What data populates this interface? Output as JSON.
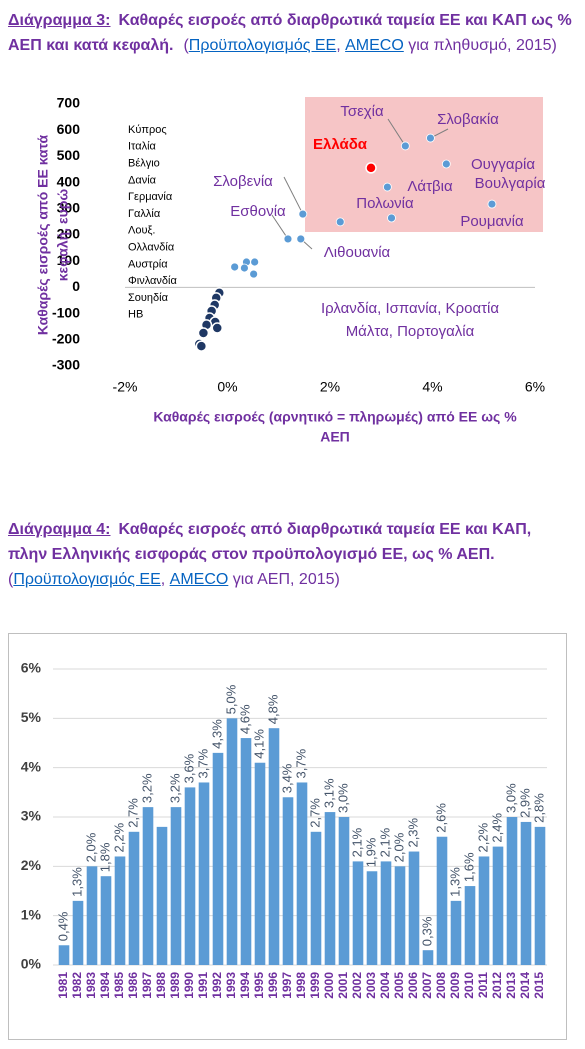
{
  "captions": [
    {
      "segments": [
        {
          "kind": "label",
          "text": "Διάγραμμα 3:"
        },
        {
          "kind": "title",
          "text": "Καθαρές εισροές από διαρθρωτικά ταμεία ΕΕ και ΚΑΠ ως % ΑΕΠ και κατά κεφαλή."
        },
        {
          "kind": "plain",
          "text": "("
        },
        {
          "kind": "link",
          "text": "Προϋπολογισμός ΕΕ"
        },
        {
          "kind": "plain",
          "text": ", "
        },
        {
          "kind": "link",
          "text": "AMECO"
        },
        {
          "kind": "plain",
          "text": " για πληθυσμό, 2015)"
        }
      ]
    },
    {
      "segments": [
        {
          "kind": "label",
          "text": "Διάγραμμα 4:"
        },
        {
          "kind": "title",
          "text": "Καθαρές εισροές από διαρθρωτικά ταμεία ΕΕ και ΚΑΠ, πλην Ελληνικής εισφοράς στον προϋπολογισμό ΕΕ, ως % ΑΕΠ."
        },
        {
          "kind": "plain",
          "text": "("
        },
        {
          "kind": "link",
          "text": "Προϋπολογισμός ΕΕ"
        },
        {
          "kind": "plain",
          "text": ", "
        },
        {
          "kind": "link",
          "text": "AMECO"
        },
        {
          "kind": "plain",
          "text": " για ΑΕΠ, 2015)"
        }
      ]
    }
  ],
  "chart_data": [
    {
      "type": "scatter",
      "x_label": [
        "Καθαρές εισροές (αρνητικό = πληρωμές) από ΕΕ ως %",
        "ΑΕΠ"
      ],
      "y_label": [
        "Καθαρές εισροές από ΕΕ κατά",
        "κεφαλή, ευρώ"
      ],
      "xlim": [
        -2,
        6
      ],
      "xticks": [
        {
          "value": -2,
          "label": "-2%"
        },
        {
          "value": 0,
          "label": "0%"
        },
        {
          "value": 2,
          "label": "2%"
        },
        {
          "value": 4,
          "label": "4%"
        },
        {
          "value": 6,
          "label": "6%"
        }
      ],
      "ylim": [
        -300,
        700
      ],
      "yticks": [
        -300,
        -200,
        -100,
        0,
        100,
        200,
        300,
        400,
        500,
        600,
        700
      ],
      "x": [
        3.47,
        3.96,
        2.8,
        4.27,
        3.12,
        5.16,
        2.2,
        3.2,
        1.47,
        1.18,
        1.43,
        0.14,
        0.37,
        0.53,
        0.33,
        0.51,
        -0.16,
        -0.22,
        -0.25,
        -0.31,
        -0.35,
        -0.24,
        -0.41,
        -0.2,
        -0.47,
        -0.55,
        -0.51
      ],
      "y": [
        540,
        570,
        456,
        471,
        383,
        318,
        250,
        265,
        280,
        185,
        185,
        78,
        97,
        97,
        74,
        51,
        -21,
        -40,
        -67,
        -90,
        -117,
        -132,
        -143,
        -155,
        -174,
        -216,
        -224
      ],
      "labels": [
        "Τσεχία",
        "Σλοβακία",
        "Ελλάδα",
        "Ουγγαρία",
        "Λάτβια",
        "Βουλγαρία",
        "Πολωνία",
        "Ρουμανία",
        "Σλοβενία",
        "Εσθονία",
        "Λιθουανία",
        null,
        null,
        null,
        null,
        null,
        null,
        null,
        null,
        null,
        null,
        null,
        null,
        null,
        null,
        null,
        null
      ],
      "color": "#5b9bd5",
      "label_color": "#7030a0",
      "colors": [
        "#5b9bd5",
        "#5b9bd5",
        "#ff0000",
        "#5b9bd5",
        "#5b9bd5",
        "#5b9bd5",
        "#5b9bd5",
        "#5b9bd5",
        "#5b9bd5",
        "#5b9bd5",
        "#5b9bd5",
        "#5b9bd5",
        "#5b9bd5",
        "#5b9bd5",
        "#5b9bd5",
        "#5b9bd5",
        "#1f3864",
        "#1f3864",
        "#1f3864",
        "#1f3864",
        "#1f3864",
        "#1f3864",
        "#1f3864",
        "#1f3864",
        "#1f3864",
        "#1f3864",
        "#1f3864"
      ],
      "country_list": [
        "Κύπρος",
        "Ιταλία",
        "Βέλγιο",
        "Δανία",
        "Γερμανία",
        "Γαλλία",
        "Λουξ.",
        "Ολλανδία",
        "Αυστρία",
        "Φινλανδία",
        "Σουηδία",
        "ΗΒ"
      ],
      "annotation": [
        "Ιρλανδία, Ισπανία, Κροατία",
        "Μάλτα, Πορτογαλία"
      ]
    },
    {
      "type": "bar",
      "categories": [
        "1981",
        "1982",
        "1983",
        "1984",
        "1985",
        "1986",
        "1987",
        "1988",
        "1989",
        "1990",
        "1991",
        "1992",
        "1993",
        "1994",
        "1995",
        "1996",
        "1997",
        "1998",
        "1999",
        "2000",
        "2001",
        "2002",
        "2003",
        "2004",
        "2005",
        "2006",
        "2007",
        "2008",
        "2009",
        "2010",
        "2011",
        "2012",
        "2013",
        "2014",
        "2015"
      ],
      "values": [
        0.4,
        1.3,
        2.0,
        1.8,
        2.2,
        2.7,
        3.2,
        2.8,
        3.2,
        3.6,
        3.7,
        4.3,
        5.0,
        4.6,
        4.1,
        4.8,
        3.4,
        3.7,
        2.7,
        3.1,
        3.0,
        2.1,
        1.9,
        2.1,
        2.0,
        2.3,
        0.3,
        2.6,
        1.3,
        1.6,
        2.2,
        2.4,
        3.0,
        2.9,
        2.8
      ],
      "value_labels": [
        "0,4%",
        "1,3%",
        "2,0%",
        "1,8%",
        "2,2%",
        "2,7%",
        "3,2%",
        null,
        "3,2%",
        "3,6%",
        "3,7%",
        "4,3%",
        "5,0%",
        "4,6%",
        "4,1%",
        "4,8%",
        "3,4%",
        "3,7%",
        "2,7%",
        "3,1%",
        "3,0%",
        "2,1%",
        "1,9%",
        "2,1%",
        "2,0%",
        "2,3%",
        "0,3%",
        "2,6%",
        "1,3%",
        "1,6%",
        "2,2%",
        "2,4%",
        "3,0%",
        "2,9%",
        "2,8%"
      ],
      "color": "#5b9bd5",
      "ylim": [
        0,
        6
      ],
      "yticks": [
        {
          "value": 0,
          "label": "0%"
        },
        {
          "value": 1,
          "label": "1%"
        },
        {
          "value": 2,
          "label": "2%"
        },
        {
          "value": 3,
          "label": "3%"
        },
        {
          "value": 4,
          "label": "4%"
        },
        {
          "value": 5,
          "label": "5%"
        },
        {
          "value": 6,
          "label": "6%"
        }
      ],
      "grid": true
    }
  ]
}
